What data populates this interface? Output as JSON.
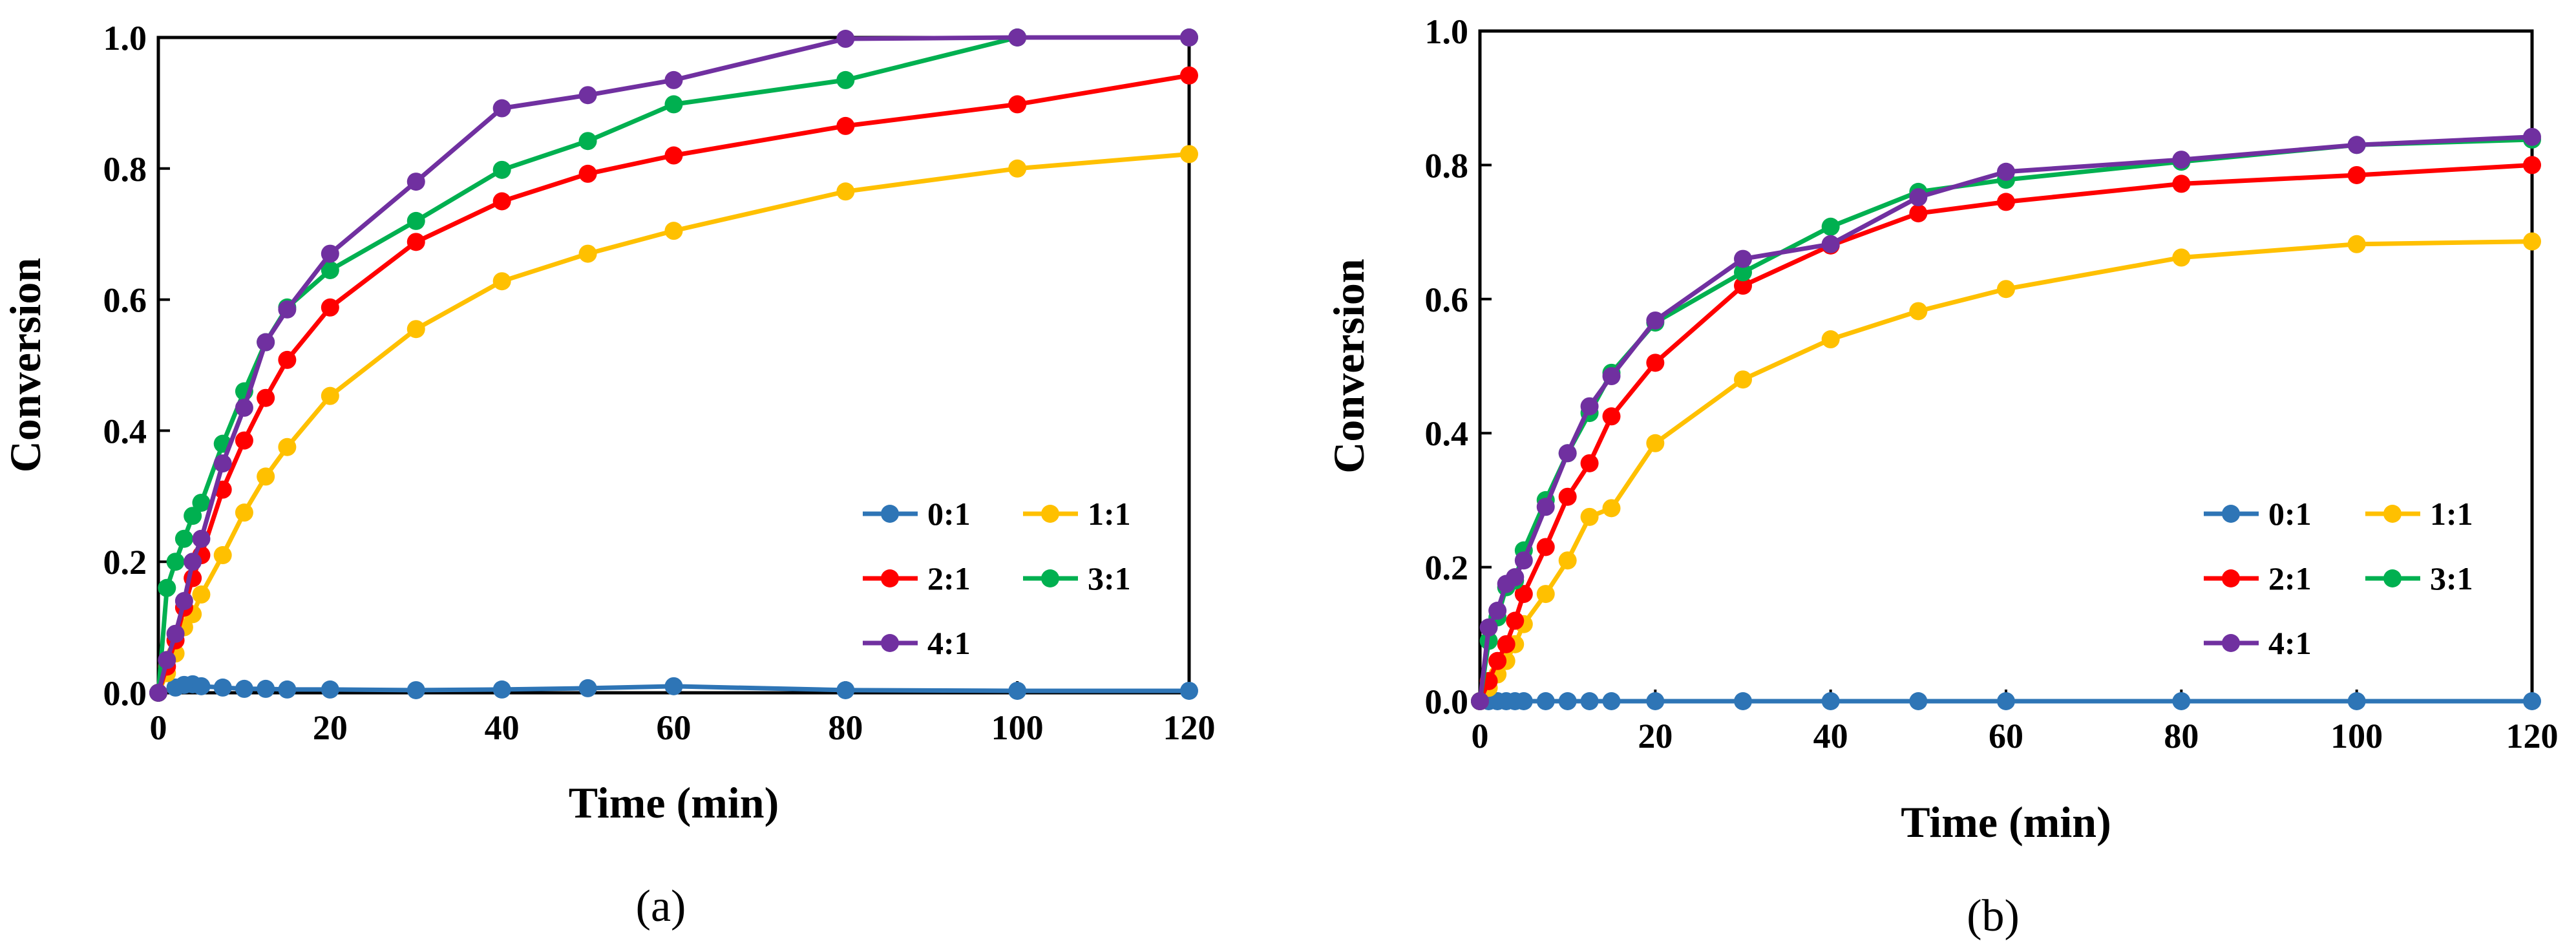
{
  "chart_data": [
    {
      "id": "a",
      "type": "line",
      "caption": "(a)",
      "xlabel": "Time (min)",
      "ylabel": "Conversion",
      "xlim": [
        0,
        120
      ],
      "ylim": [
        0,
        1.0
      ],
      "xticks": [
        "0",
        "20",
        "40",
        "60",
        "80",
        "100",
        "120"
      ],
      "yticks": [
        "0.0",
        "0.2",
        "0.4",
        "0.6",
        "0.8",
        "1.0"
      ],
      "legend_position": "lower-right",
      "series": [
        {
          "name": "0:1",
          "color": "#2e75b6",
          "x": [
            0,
            2,
            3,
            4,
            5,
            7.5,
            10,
            12.5,
            15,
            20,
            30,
            40,
            50,
            60,
            80,
            100,
            120
          ],
          "y": [
            0.0,
            0.008,
            0.012,
            0.013,
            0.01,
            0.008,
            0.006,
            0.006,
            0.005,
            0.005,
            0.004,
            0.005,
            0.007,
            0.01,
            0.004,
            0.003,
            0.003
          ]
        },
        {
          "name": "1:1",
          "color": "#ffc000",
          "x": [
            0,
            1,
            2,
            3,
            4,
            5,
            7.5,
            10,
            12.5,
            15,
            20,
            30,
            40,
            50,
            60,
            80,
            100,
            120
          ],
          "y": [
            0.0,
            0.03,
            0.06,
            0.1,
            0.12,
            0.15,
            0.21,
            0.275,
            0.33,
            0.375,
            0.453,
            0.555,
            0.628,
            0.67,
            0.705,
            0.765,
            0.8,
            0.822
          ]
        },
        {
          "name": "2:1",
          "color": "#ff0000",
          "x": [
            0,
            1,
            2,
            3,
            4,
            5,
            7.5,
            10,
            12.5,
            15,
            20,
            30,
            40,
            50,
            60,
            80,
            100,
            120
          ],
          "y": [
            0.0,
            0.04,
            0.08,
            0.13,
            0.175,
            0.21,
            0.31,
            0.385,
            0.45,
            0.508,
            0.588,
            0.688,
            0.75,
            0.792,
            0.82,
            0.865,
            0.898,
            0.942
          ]
        },
        {
          "name": "3:1",
          "color": "#00b050",
          "x": [
            0,
            1,
            2,
            3,
            4,
            5,
            7.5,
            10,
            12.5,
            15,
            20,
            30,
            40,
            50,
            60,
            80,
            100,
            120
          ],
          "y": [
            0.0,
            0.16,
            0.2,
            0.235,
            0.27,
            0.29,
            0.38,
            0.46,
            0.535,
            0.588,
            0.645,
            0.72,
            0.798,
            0.842,
            0.898,
            0.935,
            1.0,
            1.0
          ]
        },
        {
          "name": "4:1",
          "color": "#7030a0",
          "x": [
            0,
            1,
            2,
            3,
            4,
            5,
            7.5,
            10,
            12.5,
            15,
            20,
            30,
            40,
            50,
            60,
            80,
            100,
            120
          ],
          "y": [
            0.0,
            0.05,
            0.09,
            0.14,
            0.2,
            0.235,
            0.35,
            0.435,
            0.535,
            0.585,
            0.67,
            0.78,
            0.892,
            0.912,
            0.935,
            0.998,
            1.0,
            1.0
          ]
        }
      ]
    },
    {
      "id": "b",
      "type": "line",
      "caption": "(b)",
      "xlabel": "Time (min)",
      "ylabel": "Conversion",
      "xlim": [
        0,
        120
      ],
      "ylim": [
        0,
        1.0
      ],
      "xticks": [
        "0",
        "20",
        "40",
        "60",
        "80",
        "100",
        "120"
      ],
      "yticks": [
        "0.0",
        "0.2",
        "0.4",
        "0.6",
        "0.8",
        "1.0"
      ],
      "legend_position": "lower-right",
      "series": [
        {
          "name": "0:1",
          "color": "#2e75b6",
          "x": [
            0,
            1,
            2,
            3,
            4,
            5,
            7.5,
            10,
            12.5,
            15,
            20,
            30,
            40,
            50,
            60,
            80,
            100,
            120
          ],
          "y": [
            0.0,
            0.0,
            0.0,
            0.0,
            0.0,
            0.0,
            0.0,
            0.0,
            0.0,
            0.0,
            0.0,
            0.0,
            0.0,
            0.0,
            0.0,
            0.0,
            0.0,
            0.0
          ]
        },
        {
          "name": "1:1",
          "color": "#ffc000",
          "x": [
            0,
            1,
            2,
            3,
            4,
            5,
            7.5,
            10,
            12.5,
            15,
            20,
            30,
            40,
            50,
            60,
            80,
            100,
            120
          ],
          "y": [
            0.0,
            0.02,
            0.04,
            0.06,
            0.085,
            0.115,
            0.16,
            0.21,
            0.275,
            0.288,
            0.385,
            0.48,
            0.54,
            0.582,
            0.615,
            0.662,
            0.682,
            0.686
          ]
        },
        {
          "name": "2:1",
          "color": "#ff0000",
          "x": [
            0,
            1,
            2,
            3,
            4,
            5,
            7.5,
            10,
            12.5,
            15,
            20,
            30,
            40,
            50,
            60,
            80,
            100,
            120
          ],
          "y": [
            0.0,
            0.03,
            0.06,
            0.085,
            0.12,
            0.16,
            0.23,
            0.305,
            0.355,
            0.425,
            0.505,
            0.62,
            0.68,
            0.728,
            0.745,
            0.772,
            0.785,
            0.8
          ]
        },
        {
          "name": "3:1",
          "color": "#00b050",
          "x": [
            0,
            1,
            2,
            3,
            4,
            5,
            7.5,
            10,
            12.5,
            15,
            20,
            30,
            40,
            50,
            60,
            80,
            100,
            120
          ],
          "y": [
            0.0,
            0.09,
            0.125,
            0.17,
            0.18,
            0.225,
            0.3,
            0.37,
            0.43,
            0.49,
            0.565,
            0.64,
            0.708,
            0.76,
            0.778,
            0.805,
            0.83,
            0.838
          ]
        },
        {
          "name": "4:1",
          "color": "#7030a0",
          "x": [
            0,
            1,
            2,
            3,
            4,
            5,
            7.5,
            10,
            12.5,
            15,
            20,
            30,
            40,
            50,
            60,
            80,
            100,
            120
          ],
          "y": [
            0.0,
            0.11,
            0.135,
            0.175,
            0.185,
            0.21,
            0.29,
            0.37,
            0.44,
            0.485,
            0.568,
            0.66,
            0.682,
            0.752,
            0.79,
            0.808,
            0.83,
            0.842
          ]
        }
      ]
    }
  ]
}
